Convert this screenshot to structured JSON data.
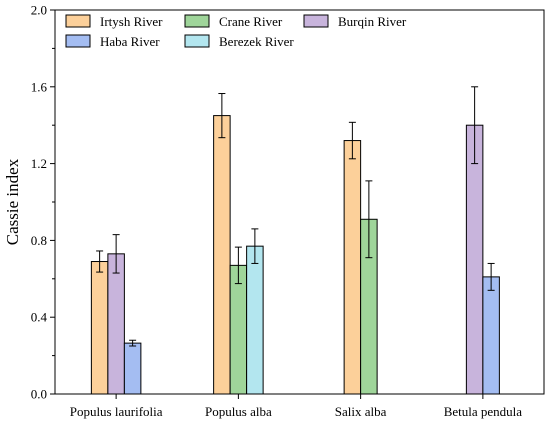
{
  "chart_data": {
    "type": "bar",
    "categories": [
      "Populus laurifolia",
      "Populus alba",
      "Salix alba",
      "Betula pendula"
    ],
    "series": [
      {
        "name": "Irtysh River",
        "color": "#FCD09A",
        "values": [
          0.69,
          1.45,
          1.32,
          null
        ],
        "errors": [
          0.055,
          0.115,
          0.095,
          null
        ]
      },
      {
        "name": "Crane River",
        "color": "#9FD59A",
        "values": [
          null,
          0.67,
          0.91,
          null
        ],
        "errors": [
          null,
          0.095,
          0.2,
          null
        ]
      },
      {
        "name": "Burqin River",
        "color": "#C8B4DC",
        "values": [
          0.73,
          null,
          null,
          1.4
        ],
        "errors": [
          0.1,
          null,
          null,
          0.2
        ]
      },
      {
        "name": "Haba River",
        "color": "#A4BDF2",
        "values": [
          0.265,
          null,
          null,
          0.61
        ],
        "errors": [
          0.015,
          null,
          null,
          0.07
        ]
      },
      {
        "name": "Berezek River",
        "color": "#B3E6EF",
        "values": [
          null,
          0.77,
          null,
          null
        ],
        "errors": [
          null,
          0.09,
          null,
          null
        ]
      }
    ],
    "xlabel": "",
    "ylabel": "Cassie index",
    "ylim": [
      0.0,
      2.0
    ],
    "yticks": [
      "0.0",
      "0.4",
      "0.8",
      "1.2",
      "1.6",
      "2.0"
    ],
    "legend": {
      "position": "top-left",
      "columns": 3
    },
    "grid": false
  }
}
